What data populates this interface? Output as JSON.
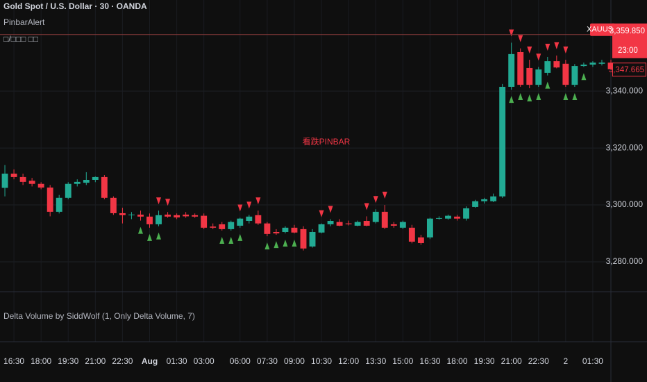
{
  "chart_data": {
    "type": "candlestick",
    "title": "Gold Spot / U.S. Dollar · 30 · OANDA",
    "indicators": [
      "PinbarAlert",
      "□/□□□ □□"
    ],
    "annotation": "看跌PINBAR",
    "lower_pane_title": "Delta Volume by SiddWolf (1, Only Delta Volume, 7)",
    "symbol": "XAUUSD",
    "countdown": "23:00",
    "price_labels": [
      {
        "value": 3359.85,
        "label": "3,359.850"
      },
      {
        "value": 3347.665,
        "label": "3,347.665"
      }
    ],
    "up_color": "#22ab94",
    "down_color": "#f23645",
    "bull_signal_color": "#4caf50",
    "grid": true,
    "x": [
      0,
      1,
      2,
      3,
      4,
      5,
      6,
      7,
      8,
      9,
      10,
      11,
      12,
      13,
      14,
      15,
      16,
      17,
      18,
      19,
      20,
      21,
      22,
      23,
      24,
      25,
      26,
      27,
      28,
      29,
      30,
      31,
      32,
      33,
      34,
      35,
      36,
      37,
      38,
      39,
      40,
      41,
      42,
      43,
      44,
      45,
      46,
      47,
      48,
      49,
      50,
      51,
      52,
      53,
      54,
      55,
      56,
      57,
      58,
      59,
      60,
      61,
      62,
      63,
      64,
      65,
      66,
      67
    ],
    "open": [
      3306,
      3311,
      3309.8,
      3308.5,
      3307.4,
      3306.1,
      3297.6,
      3302.5,
      3307.4,
      3307.8,
      3308.8,
      3309.8,
      3302.5,
      3297.1,
      3296.4,
      3296.6,
      3295.9,
      3293.2,
      3296.6,
      3296.4,
      3296.6,
      3296.4,
      3296.2,
      3292.4,
      3293.2,
      3291.5,
      3292.7,
      3294.4,
      3296.4,
      3293.5,
      3290.5,
      3290.5,
      3292,
      3291.5,
      3285.4,
      3290.3,
      3293.2,
      3294,
      3293.5,
      3292.7,
      3294.4,
      3294,
      3297.6,
      3293.2,
      3292,
      3292,
      3288.6,
      3288.6,
      3295.2,
      3295.2,
      3295.9,
      3295.2,
      3299.3,
      3301.3,
      3301.3,
      3303,
      3341.5,
      3353.7,
      3348.1,
      3342.2,
      3346.4,
      3350.5,
      3349.6,
      3342.2,
      3348.8,
      3349.3,
      3349.6,
      3350
    ],
    "high": [
      3314,
      3312.5,
      3311,
      3309.5,
      3308,
      3307,
      3303.5,
      3308,
      3309,
      3311.5,
      3310,
      3310.5,
      3303,
      3299,
      3297.5,
      3298,
      3297,
      3298,
      3297.5,
      3297,
      3297.5,
      3297,
      3297,
      3293.5,
      3294,
      3294.5,
      3295.5,
      3296.5,
      3298,
      3294,
      3291.5,
      3292.5,
      3293,
      3292.5,
      3291.5,
      3293.5,
      3295,
      3295,
      3294.5,
      3294.5,
      3296,
      3298.5,
      3300,
      3294,
      3294.5,
      3293,
      3289.5,
      3295.5,
      3296,
      3296.6,
      3296.5,
      3299.5,
      3301.8,
      3302.5,
      3304,
      3342.5,
      3357,
      3355,
      3351,
      3348.5,
      3352,
      3352.5,
      3351,
      3349.5,
      3350,
      3350.5,
      3351,
      3351
    ],
    "low": [
      3303,
      3309,
      3307,
      3306.5,
      3305.5,
      3296,
      3297,
      3302,
      3306.5,
      3307,
      3308,
      3302,
      3296.5,
      3293.5,
      3295,
      3294.5,
      3292,
      3292.5,
      3295.5,
      3295,
      3295.5,
      3295.5,
      3291.5,
      3291.5,
      3291,
      3291,
      3292,
      3293.5,
      3293,
      3289,
      3289.5,
      3290,
      3290,
      3284,
      3285,
      3290,
      3292.5,
      3292.5,
      3292.8,
      3292.5,
      3292.5,
      3293.5,
      3291.5,
      3292,
      3291.5,
      3286.5,
      3286,
      3288,
      3294.8,
      3294.8,
      3294.5,
      3294.5,
      3299,
      3300.5,
      3301,
      3302.5,
      3340.5,
      3341.5,
      3341,
      3341.5,
      3345.5,
      3348,
      3341.5,
      3341.5,
      3348.5,
      3348.5,
      3349,
      3347.5
    ],
    "close": [
      3311,
      3309.8,
      3308.1,
      3307.4,
      3306.1,
      3297.6,
      3302.5,
      3307.4,
      3308.1,
      3308.8,
      3309.8,
      3302.5,
      3297.1,
      3296.4,
      3296.6,
      3295.9,
      3293.2,
      3296.4,
      3295.9,
      3295.6,
      3296,
      3295.9,
      3292,
      3292,
      3291.5,
      3294,
      3295.2,
      3295.9,
      3293.5,
      3289.8,
      3290,
      3292,
      3290.3,
      3284.7,
      3290.5,
      3293.2,
      3294.4,
      3292.7,
      3293.2,
      3294,
      3292.7,
      3297.6,
      3292,
      3292.7,
      3294,
      3287.1,
      3286.6,
      3295.2,
      3295.4,
      3296.2,
      3295.2,
      3298.8,
      3301.3,
      3302,
      3303,
      3341.5,
      3353,
      3342.2,
      3342.2,
      3347.6,
      3350.5,
      3348.3,
      3342.2,
      3348.8,
      3349.3,
      3350,
      3350,
      3347.7
    ],
    "bearish_signals": [
      17,
      18,
      26,
      27,
      28,
      35,
      36,
      40,
      41,
      42,
      56,
      57,
      58,
      59,
      60,
      61,
      62
    ],
    "bullish_signals": [
      15,
      16,
      17,
      24,
      25,
      26,
      29,
      30,
      31,
      32,
      56,
      57,
      58,
      59,
      60,
      62,
      63,
      64
    ],
    "xlim": [
      -0.54,
      67
    ],
    "ylim": [
      3270,
      3372
    ],
    "yticks": [
      {
        "value": 3280,
        "label": "3,280.000"
      },
      {
        "value": 3300,
        "label": "3,300.000"
      },
      {
        "value": 3320,
        "label": "3,320.000"
      },
      {
        "value": 3340,
        "label": "3,340.000"
      }
    ],
    "xticks": [
      {
        "value": 1,
        "label": "16:30"
      },
      {
        "value": 4,
        "label": "18:00"
      },
      {
        "value": 7,
        "label": "19:30"
      },
      {
        "value": 10,
        "label": "21:00"
      },
      {
        "value": 13,
        "label": "22:30"
      },
      {
        "value": 16,
        "label": "Aug"
      },
      {
        "value": 19,
        "label": "01:30"
      },
      {
        "value": 22,
        "label": "03:00"
      },
      {
        "value": 26,
        "label": "06:00"
      },
      {
        "value": 29,
        "label": "07:30"
      },
      {
        "value": 32,
        "label": "09:00"
      },
      {
        "value": 35,
        "label": "10:30"
      },
      {
        "value": 38,
        "label": "12:00"
      },
      {
        "value": 41,
        "label": "13:30"
      },
      {
        "value": 44,
        "label": "15:00"
      },
      {
        "value": 47,
        "label": "16:30"
      },
      {
        "value": 50,
        "label": "18:00"
      },
      {
        "value": 53,
        "label": "19:30"
      },
      {
        "value": 56,
        "label": "21:00"
      },
      {
        "value": 59,
        "label": "22:30"
      },
      {
        "value": 62,
        "label": "2"
      },
      {
        "value": 65,
        "label": "01:30"
      }
    ]
  }
}
